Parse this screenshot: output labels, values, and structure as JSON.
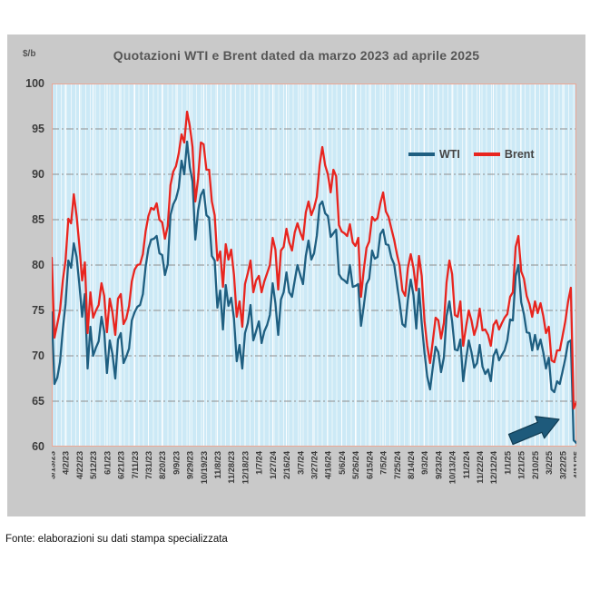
{
  "footer": {
    "source": "Fonte: elaborazioni su dati stampa specializzata"
  },
  "chart_data": {
    "type": "line",
    "title": "Quotazioni WTI e Brent dated da marzo 2023 ad aprile 2025",
    "ylabel": "$/b",
    "xlabel": "",
    "ylim": [
      60,
      100
    ],
    "y_ticks": [
      100,
      95,
      90,
      85,
      80,
      75,
      70,
      65,
      60
    ],
    "grid": {
      "h_values": [
        95,
        90,
        85,
        80,
        75,
        70,
        65
      ],
      "v_interval_days": 7
    },
    "legend_position": "top-right-inside",
    "total_days": 760,
    "sample_interval_days": 4,
    "x_tick_interval_days": 20,
    "x_tick_labels": [
      "3/13/23",
      "4/2/23",
      "4/22/23",
      "5/12/23",
      "6/1/23",
      "6/21/23",
      "7/11/23",
      "7/31/23",
      "8/20/23",
      "9/9/23",
      "9/29/23",
      "10/19/23",
      "11/8/23",
      "11/28/23",
      "12/18/23",
      "1/7/24",
      "1/27/24",
      "2/16/24",
      "3/7/24",
      "3/27/24",
      "4/16/24",
      "5/6/24",
      "5/26/24",
      "6/15/24",
      "7/5/24",
      "7/25/24",
      "8/14/24",
      "9/3/24",
      "9/23/24",
      "10/13/24",
      "11/2/24",
      "11/22/24",
      "12/12/24",
      "1/1/25",
      "1/21/25",
      "2/10/25",
      "3/2/25",
      "3/22/25",
      "4/11/25"
    ],
    "series": [
      {
        "name": "WTI",
        "color": "#1f5f81",
        "values": [
          74.8,
          66.9,
          67.6,
          69.3,
          72.9,
          75.7,
          80.5,
          79.7,
          82.4,
          80.9,
          77.9,
          74.3,
          76.8,
          68.6,
          73.2,
          70.0,
          70.9,
          71.6,
          74.3,
          72.7,
          68.1,
          71.7,
          70.2,
          67.5,
          71.8,
          72.5,
          69.2,
          69.9,
          70.8,
          73.9,
          74.8,
          75.4,
          75.6,
          76.8,
          79.8,
          81.8,
          82.8,
          82.9,
          83.2,
          81.3,
          81.1,
          78.9,
          80.1,
          85.5,
          86.7,
          87.3,
          88.5,
          91.5,
          90.0,
          93.6,
          90.8,
          89.2,
          82.8,
          86.0,
          87.7,
          88.3,
          85.5,
          85.2,
          81.0,
          80.5,
          75.3,
          77.2,
          72.9,
          77.8,
          75.5,
          76.4,
          74.1,
          69.4,
          71.2,
          68.6,
          72.5,
          73.6,
          75.6,
          71.7,
          72.7,
          73.8,
          71.4,
          72.7,
          73.4,
          74.5,
          78.0,
          75.8,
          72.3,
          76.2,
          77.0,
          79.2,
          77.0,
          76.5,
          78.3,
          80.0,
          78.9,
          77.9,
          81.0,
          82.7,
          80.6,
          81.3,
          83.2,
          86.6,
          87.0,
          85.7,
          85.4,
          83.1,
          83.5,
          83.9,
          79.0,
          78.5,
          78.3,
          78.0,
          80.0,
          77.6,
          77.7,
          77.9,
          73.3,
          75.5,
          77.9,
          78.5,
          81.6,
          80.7,
          80.9,
          83.4,
          83.9,
          82.3,
          82.2,
          80.8,
          80.1,
          77.9,
          75.8,
          73.5,
          73.2,
          76.2,
          78.4,
          76.7,
          73.0,
          77.4,
          73.6,
          70.3,
          67.7,
          66.3,
          68.7,
          71.0,
          70.4,
          68.2,
          69.8,
          74.4,
          76.0,
          73.8,
          70.7,
          70.6,
          71.8,
          67.2,
          69.5,
          71.7,
          70.4,
          68.7,
          69.2,
          71.2,
          68.8,
          68.0,
          68.5,
          67.2,
          70.0,
          70.7,
          69.5,
          70.1,
          70.6,
          71.7,
          74.0,
          73.9,
          78.8,
          80.0,
          75.9,
          74.6,
          72.6,
          72.5,
          70.6,
          72.3,
          70.7,
          71.8,
          70.4,
          68.6,
          69.8,
          66.3,
          66.0,
          67.2,
          66.9,
          68.3,
          69.7,
          71.5,
          71.7,
          60.7,
          60.4
        ]
      },
      {
        "name": "Brent",
        "color": "#e8251f",
        "values": [
          80.8,
          72.0,
          73.5,
          75.0,
          78.3,
          80.5,
          85.1,
          84.6,
          87.8,
          85.4,
          82.2,
          78.3,
          80.3,
          72.5,
          77.0,
          74.2,
          75.0,
          75.6,
          78.0,
          76.6,
          72.6,
          76.3,
          74.8,
          72.3,
          76.3,
          76.8,
          73.5,
          74.1,
          75.5,
          78.2,
          79.5,
          80.0,
          80.1,
          81.2,
          83.7,
          85.4,
          86.3,
          86.1,
          86.8,
          85.0,
          84.7,
          82.9,
          84.3,
          88.8,
          90.3,
          90.9,
          92.3,
          94.4,
          93.5,
          96.9,
          95.3,
          93.0,
          87.0,
          89.5,
          93.5,
          93.3,
          90.5,
          90.5,
          87.0,
          85.5,
          80.5,
          81.5,
          77.6,
          82.3,
          80.6,
          81.7,
          78.9,
          74.3,
          76.0,
          73.2,
          77.9,
          79.1,
          80.5,
          77.0,
          78.3,
          78.8,
          77.0,
          78.2,
          79.1,
          80.0,
          83.0,
          81.7,
          77.3,
          81.6,
          82.0,
          84.0,
          82.5,
          81.6,
          83.6,
          84.6,
          83.6,
          82.8,
          85.8,
          87.0,
          85.5,
          86.3,
          87.5,
          91.0,
          93.0,
          91.0,
          90.0,
          88.0,
          90.5,
          89.8,
          84.4,
          83.7,
          83.5,
          83.2,
          84.5,
          82.5,
          82.1,
          83.0,
          76.5,
          79.5,
          81.9,
          82.6,
          85.3,
          84.9,
          85.2,
          86.8,
          88.0,
          85.9,
          85.3,
          84.0,
          82.8,
          81.2,
          79.9,
          77.2,
          76.6,
          79.7,
          81.2,
          79.7,
          77.2,
          81.0,
          78.8,
          73.8,
          71.1,
          69.2,
          71.6,
          74.2,
          73.9,
          71.9,
          73.6,
          78.1,
          80.5,
          79.0,
          74.5,
          74.3,
          76.0,
          71.1,
          73.1,
          75.0,
          73.9,
          72.3,
          73.3,
          75.2,
          72.8,
          72.9,
          72.3,
          71.1,
          73.4,
          73.9,
          72.9,
          73.6,
          74.2,
          74.6,
          76.5,
          77.0,
          82.0,
          83.2,
          79.3,
          78.5,
          76.6,
          75.7,
          74.3,
          76.0,
          74.7,
          75.8,
          74.4,
          72.5,
          73.2,
          69.5,
          69.3,
          70.6,
          70.6,
          72.2,
          73.8,
          76.0,
          77.5,
          64.2,
          64.9
        ]
      }
    ],
    "annotation_arrow": {
      "shape": "block-arrow",
      "direction": "up-right",
      "tail_day": 665,
      "tail_value": 60.8,
      "tip_day": 735,
      "tip_value": 63.0,
      "color": "#1e5a7b"
    },
    "colors": {
      "plot_background": "#cce9f6",
      "panel_background": "#c9c9c9",
      "vertical_gridline": "#ffffff",
      "horizontal_gridline": "#8f8f8f",
      "plot_border": "#eaa795",
      "text": "#3c3c3c"
    }
  }
}
